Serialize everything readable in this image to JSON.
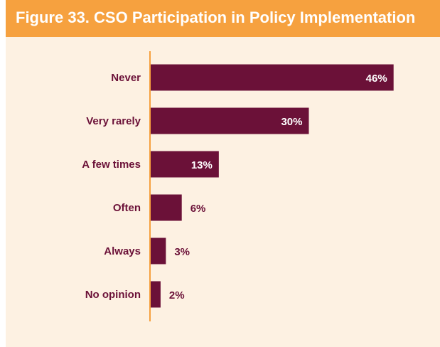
{
  "title": "Figure 33. CSO Participation in Policy Implementation",
  "colors": {
    "header_bg": "#f6a13f",
    "panel_bg": "#fdf1e2",
    "bar": "#6b1138",
    "axis": "#f6a13f",
    "label": "#6b1138",
    "inside_label": "#ffffff"
  },
  "chart_data": {
    "type": "bar",
    "orientation": "horizontal",
    "title": "Figure 33. CSO Participation in Policy Implementation",
    "categories": [
      "Never",
      "Very rarely",
      "A few times",
      "Often",
      "Always",
      "No opinion"
    ],
    "values": [
      46,
      30,
      13,
      6,
      3,
      2
    ],
    "value_labels": [
      "46%",
      "30%",
      "13%",
      "6%",
      "3%",
      "2%"
    ],
    "xlabel": "",
    "ylabel": "",
    "xlim": [
      0,
      50
    ],
    "grid": false,
    "legend": "none"
  }
}
